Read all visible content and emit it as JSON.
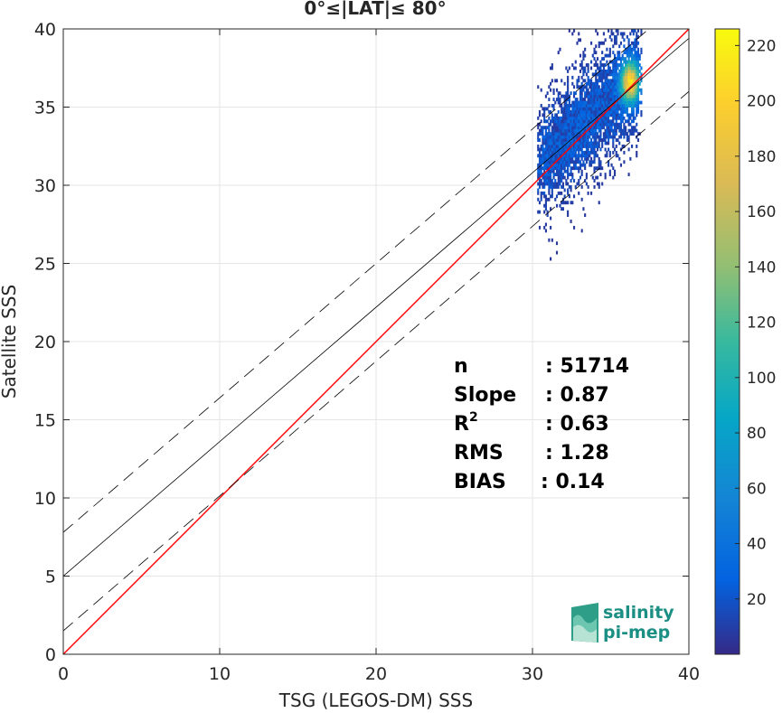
{
  "chart_data": {
    "type": "heatmap",
    "title": "0°≤|LAT|≤ 80°",
    "xlabel": "TSG (LEGOS-DM) SSS",
    "ylabel": "Satellite SSS",
    "xlim": [
      0,
      40
    ],
    "ylim": [
      0,
      40
    ],
    "xticks": [
      "0",
      "10",
      "20",
      "30",
      "40"
    ],
    "yticks": [
      "0",
      "5",
      "10",
      "15",
      "20",
      "25",
      "30",
      "35",
      "40"
    ],
    "grid": true,
    "colorbar": {
      "range": [
        0,
        226
      ],
      "ticks": [
        "20",
        "40",
        "60",
        "80",
        "100",
        "120",
        "140",
        "160",
        "180",
        "200",
        "220"
      ],
      "colormap": "parula"
    },
    "lines": [
      {
        "role": "identity",
        "color": "#ff0000",
        "x": [
          0,
          40
        ],
        "y": [
          0,
          40
        ]
      },
      {
        "role": "regression",
        "color": "#000000",
        "x": [
          0,
          40
        ],
        "y": [
          5.0,
          39.4
        ]
      },
      {
        "role": "upper-bound",
        "color": "#000000",
        "dash": true,
        "x": [
          0,
          40
        ],
        "y": [
          7.8,
          42.2
        ]
      },
      {
        "role": "lower-bound",
        "color": "#000000",
        "dash": true,
        "x": [
          0,
          40
        ],
        "y": [
          1.5,
          36.0
        ]
      }
    ],
    "density": {
      "x_range": [
        30.3,
        37.0
      ],
      "y_range": [
        25.2,
        40.0
      ],
      "peak": {
        "x": 36.2,
        "y": 36.5,
        "count": 226
      }
    },
    "stats": [
      {
        "label": "n",
        "value": ": 51714"
      },
      {
        "label": "Slope",
        "value": ": 0.87"
      },
      {
        "label": "R",
        "sup": "2",
        "value": ": 0.63"
      },
      {
        "label": "RMS",
        "value": ": 1.28"
      },
      {
        "label": "BIAS",
        "value": ": 0.14"
      }
    ]
  },
  "logo": {
    "line1": "salinity",
    "line2": "pi-mep"
  }
}
